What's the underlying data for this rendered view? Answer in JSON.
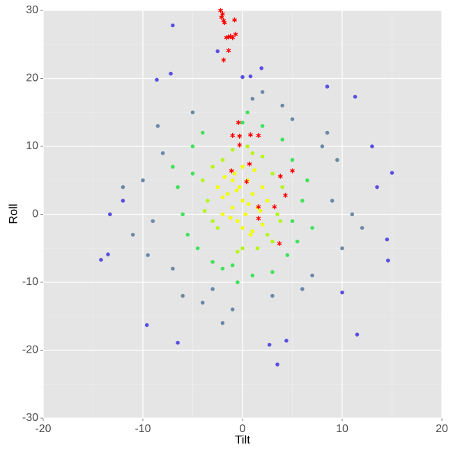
{
  "chart_data": {
    "type": "scatter",
    "x_label": "Tilt",
    "y_label": "Roll",
    "xlim": [
      -20,
      20
    ],
    "ylim": [
      -30,
      30
    ],
    "xticks": [
      -20,
      -10,
      0,
      10,
      20
    ],
    "yticks": [
      -30,
      -20,
      -10,
      0,
      10,
      20,
      30
    ],
    "xminor": [
      -15,
      -5,
      5,
      15
    ],
    "yminor": [
      -25,
      -15,
      -5,
      5,
      15,
      25
    ],
    "grid": true,
    "series": [
      {
        "color": "#6b88a8",
        "marker": "circle",
        "x": [
          8,
          -8,
          9,
          -9,
          10,
          -10,
          7,
          -7,
          5,
          -5,
          3,
          -3,
          8.5,
          -8.5,
          11,
          -11,
          6,
          -6,
          9.5,
          -9.5,
          1,
          -1,
          4,
          -4,
          12,
          -12,
          2,
          -2
        ],
        "values": [
          10,
          9,
          2,
          -1,
          -5,
          5,
          -9,
          -8,
          14,
          15,
          -12,
          -11,
          12,
          13,
          0,
          -3,
          -11,
          -12,
          8,
          -6,
          17,
          -14,
          16,
          -13,
          -2,
          4,
          18,
          -16
        ]
      },
      {
        "color": "#5a4fe0",
        "marker": "circle",
        "x": [
          -7,
          -2.5,
          -7.2,
          -8.6,
          0,
          0.8,
          1.9,
          -14.2,
          -13.5,
          -9.6,
          -6.5,
          2.7,
          3.5,
          4.4,
          11.5,
          15,
          14.5,
          14.6,
          11.3,
          -13.3,
          -12,
          13.5,
          13,
          10,
          8.5
        ],
        "values": [
          27.8,
          24,
          20.7,
          19.8,
          20.2,
          20.3,
          21.5,
          -6.7,
          -5.9,
          -16.3,
          -18.9,
          -19.2,
          -22.1,
          -18.6,
          -17.7,
          6.1,
          -3.7,
          -6.8,
          17.3,
          0,
          2,
          4,
          10,
          -11.5,
          18.8
        ]
      },
      {
        "color": "#3fe35a",
        "marker": "circle",
        "x": [
          5,
          -5,
          6,
          -6,
          5.5,
          -5.5,
          4,
          -4,
          2,
          -2,
          0,
          1,
          -1,
          6.5,
          -6.5,
          3,
          -3,
          5,
          -5,
          0.5,
          -0.5,
          4.5,
          -4.5,
          7,
          -7
        ],
        "values": [
          8,
          6,
          2,
          0,
          -4,
          -3,
          11,
          12,
          13,
          -8,
          13.5,
          -9,
          -7.5,
          5,
          4,
          -8.5,
          -7,
          -1,
          10,
          15,
          -10,
          -6,
          -5,
          -2,
          7
        ]
      },
      {
        "color": "#b6f516",
        "marker": "circle",
        "x": [
          3,
          -3,
          3.5,
          -3.5,
          2.5,
          -2.5,
          1,
          -1,
          0,
          4,
          -4,
          3,
          -3,
          2,
          -2,
          0.5,
          -0.5,
          3.8,
          -3.8,
          1.5
        ],
        "values": [
          6,
          7,
          0,
          2,
          -3,
          -2,
          9,
          9.5,
          -5,
          4,
          5,
          -4,
          -1,
          8.5,
          8,
          10,
          -5.5,
          -1,
          0.5,
          -5
        ]
      },
      {
        "color": "#f4ff00",
        "marker": "circle",
        "x": [
          0,
          1,
          -1,
          2,
          -2,
          0.5,
          -0.5,
          1.5,
          -1.5,
          0,
          2.5,
          -2.5,
          0.8,
          -0.8,
          1.2,
          -1.2,
          0.3,
          -0.3,
          2,
          -2,
          0,
          1,
          -1,
          0.6,
          -0.6,
          1.8,
          -1.8
        ],
        "values": [
          2,
          3,
          1,
          4,
          0,
          5,
          -1,
          1,
          3,
          -2,
          2,
          4,
          -3,
          6,
          6.5,
          -0.5,
          0,
          4,
          -1.5,
          2.5,
          7,
          -2.5,
          5,
          1.5,
          3.5,
          0.5,
          5.5
        ]
      },
      {
        "color": "#ff0000",
        "marker": "asterisk",
        "x": [
          -2,
          -2.1,
          -1.9,
          -1.8,
          -0.8,
          -1.6,
          -1.4,
          -1.2,
          -1,
          -0.7,
          -1.4,
          -1.9,
          -2.2,
          -0.4,
          -1,
          -0.3,
          0.8,
          1.6,
          -0.3,
          0.7,
          -1.1,
          3.8,
          5,
          0.4,
          4.3,
          1.6,
          3.2,
          1.6,
          3.7
        ],
        "values": [
          29.5,
          29,
          28.5,
          28.2,
          28.6,
          26,
          26.1,
          26.2,
          26,
          26.5,
          24.1,
          22.7,
          30,
          13.5,
          11.6,
          11.5,
          11.7,
          11.6,
          10.2,
          7.4,
          6.4,
          5.6,
          6.4,
          4.8,
          2.8,
          1.1,
          1.1,
          -0.6,
          -4.3
        ]
      }
    ]
  }
}
